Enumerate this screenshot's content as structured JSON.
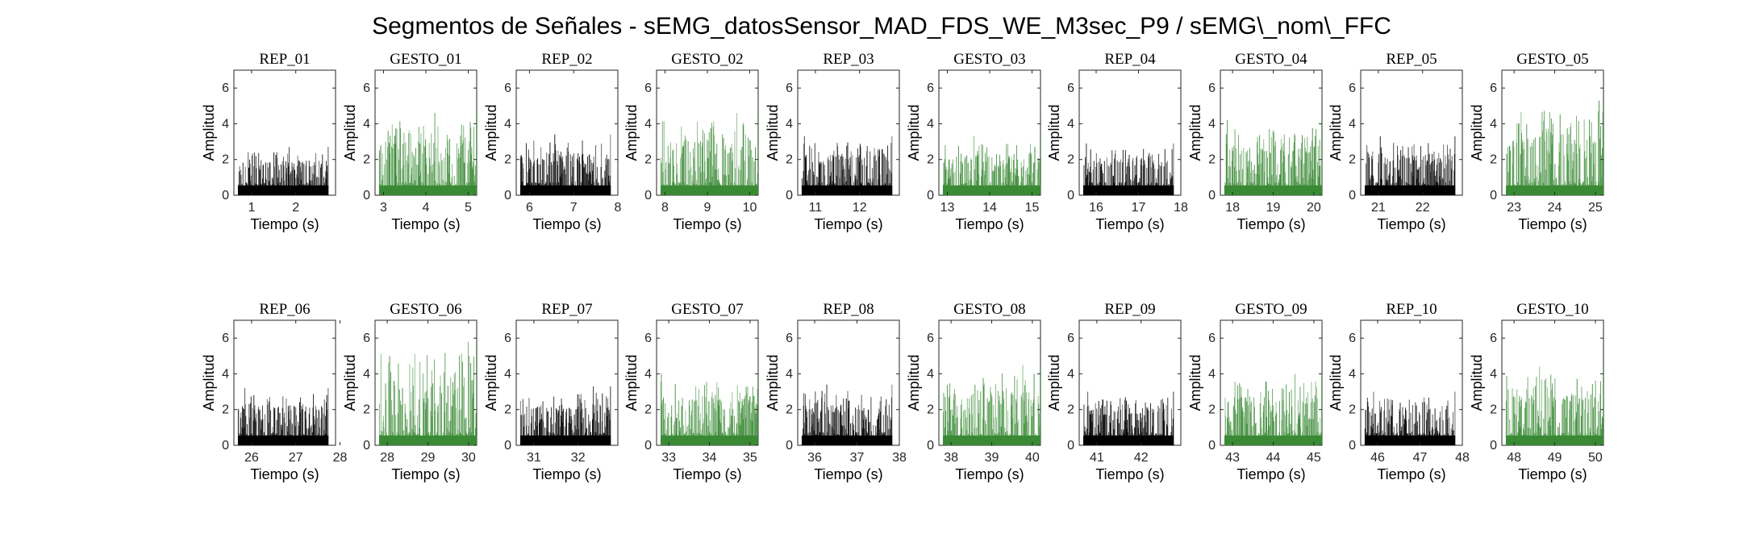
{
  "figure": {
    "title": "Segmentos de Señales - sEMG_datosSensor_MAD_FDS_WE_M3sec_P9 / sEMG\\_nom\\_FFC",
    "colors": {
      "rep": "#000000",
      "gesto": "#3a8a35",
      "axis": "#262626"
    }
  },
  "chart_data": [
    {
      "type": "bar",
      "title": "REP_01",
      "xlabel": "Tiempo (s)",
      "ylabel": "Amplitud",
      "xlim": [
        0.6,
        2.9
      ],
      "xticks": [
        1,
        2
      ],
      "ylim": [
        0,
        7
      ],
      "yticks": [
        0,
        2,
        4,
        6
      ],
      "typical_max": 2.7,
      "series": [
        {
          "name": "REP_01",
          "color": "#000000"
        }
      ]
    },
    {
      "type": "bar",
      "title": "GESTO_01",
      "xlabel": "Tiempo (s)",
      "ylabel": "Amplitud",
      "xlim": [
        2.8,
        5.2
      ],
      "xticks": [
        3,
        4,
        5
      ],
      "ylim": [
        0,
        7
      ],
      "yticks": [
        0,
        2,
        4,
        6
      ],
      "typical_max": 4.6,
      "series": [
        {
          "name": "GESTO_01",
          "color": "#3a8a35"
        }
      ]
    },
    {
      "type": "bar",
      "title": "REP_02",
      "xlabel": "Tiempo (s)",
      "ylabel": "Amplitud",
      "xlim": [
        5.7,
        8.0
      ],
      "xticks": [
        6,
        7,
        8
      ],
      "ylim": [
        0,
        7
      ],
      "yticks": [
        0,
        2,
        4,
        6
      ],
      "typical_max": 3.4,
      "series": [
        {
          "name": "REP_02",
          "color": "#000000"
        }
      ]
    },
    {
      "type": "bar",
      "title": "GESTO_02",
      "xlabel": "Tiempo (s)",
      "ylabel": "Amplitud",
      "xlim": [
        7.8,
        10.2
      ],
      "xticks": [
        8,
        9,
        10
      ],
      "ylim": [
        0,
        7
      ],
      "yticks": [
        0,
        2,
        4,
        6
      ],
      "typical_max": 4.6,
      "series": [
        {
          "name": "GESTO_02",
          "color": "#3a8a35"
        }
      ]
    },
    {
      "type": "bar",
      "title": "REP_03",
      "xlabel": "Tiempo (s)",
      "ylabel": "Amplitud",
      "xlim": [
        10.6,
        12.9
      ],
      "xticks": [
        11,
        12
      ],
      "ylim": [
        0,
        7
      ],
      "yticks": [
        0,
        2,
        4,
        6
      ],
      "typical_max": 3.3,
      "series": [
        {
          "name": "REP_03",
          "color": "#000000"
        }
      ]
    },
    {
      "type": "bar",
      "title": "GESTO_03",
      "xlabel": "Tiempo (s)",
      "ylabel": "Amplitud",
      "xlim": [
        12.8,
        15.2
      ],
      "xticks": [
        13,
        14,
        15
      ],
      "ylim": [
        0,
        7
      ],
      "yticks": [
        0,
        2,
        4,
        6
      ],
      "typical_max": 3.3,
      "series": [
        {
          "name": "GESTO_03",
          "color": "#3a8a35"
        }
      ]
    },
    {
      "type": "bar",
      "title": "REP_04",
      "xlabel": "Tiempo (s)",
      "ylabel": "Amplitud",
      "xlim": [
        15.6,
        18.0
      ],
      "xticks": [
        16,
        17,
        18
      ],
      "ylim": [
        0,
        7
      ],
      "yticks": [
        0,
        2,
        4,
        6
      ],
      "typical_max": 2.9,
      "series": [
        {
          "name": "REP_04",
          "color": "#000000"
        }
      ]
    },
    {
      "type": "bar",
      "title": "GESTO_04",
      "xlabel": "Tiempo (s)",
      "ylabel": "Amplitud",
      "xlim": [
        17.7,
        20.2
      ],
      "xticks": [
        18,
        19,
        20
      ],
      "ylim": [
        0,
        7
      ],
      "yticks": [
        0,
        2,
        4,
        6
      ],
      "typical_max": 4.2,
      "series": [
        {
          "name": "GESTO_04",
          "color": "#3a8a35"
        }
      ]
    },
    {
      "type": "bar",
      "title": "REP_05",
      "xlabel": "Tiempo (s)",
      "ylabel": "Amplitud",
      "xlim": [
        20.6,
        22.9
      ],
      "xticks": [
        21,
        22
      ],
      "ylim": [
        0,
        7
      ],
      "yticks": [
        0,
        2,
        4,
        6
      ],
      "typical_max": 3.3,
      "series": [
        {
          "name": "REP_05",
          "color": "#000000"
        }
      ]
    },
    {
      "type": "bar",
      "title": "GESTO_05",
      "xlabel": "Tiempo (s)",
      "ylabel": "Amplitud",
      "xlim": [
        22.7,
        25.2
      ],
      "xticks": [
        23,
        24,
        25
      ],
      "ylim": [
        0,
        7
      ],
      "yticks": [
        0,
        2,
        4,
        6
      ],
      "typical_max": 5.3,
      "series": [
        {
          "name": "GESTO_05",
          "color": "#3a8a35"
        }
      ]
    },
    {
      "type": "bar",
      "title": "REP_06",
      "xlabel": "Tiempo (s)",
      "ylabel": "Amplitud",
      "xlim": [
        25.6,
        27.9
      ],
      "xticks": [
        26,
        27,
        28
      ],
      "ylim": [
        0,
        7
      ],
      "yticks": [
        0,
        2,
        4,
        6
      ],
      "typical_max": 3.2,
      "series": [
        {
          "name": "REP_06",
          "color": "#000000"
        }
      ]
    },
    {
      "type": "bar",
      "title": "GESTO_06",
      "xlabel": "Tiempo (s)",
      "ylabel": "Amplitud",
      "xlim": [
        27.7,
        30.2
      ],
      "xticks": [
        28,
        29,
        30
      ],
      "ylim": [
        0,
        7
      ],
      "yticks": [
        0,
        2,
        4,
        6
      ],
      "typical_max": 5.8,
      "series": [
        {
          "name": "GESTO_06",
          "color": "#3a8a35"
        }
      ]
    },
    {
      "type": "bar",
      "title": "REP_07",
      "xlabel": "Tiempo (s)",
      "ylabel": "Amplitud",
      "xlim": [
        30.6,
        32.9
      ],
      "xticks": [
        31,
        32
      ],
      "ylim": [
        0,
        7
      ],
      "yticks": [
        0,
        2,
        4,
        6
      ],
      "typical_max": 3.3,
      "series": [
        {
          "name": "REP_07",
          "color": "#000000"
        }
      ]
    },
    {
      "type": "bar",
      "title": "GESTO_07",
      "xlabel": "Tiempo (s)",
      "ylabel": "Amplitud",
      "xlim": [
        32.7,
        35.2
      ],
      "xticks": [
        33,
        34,
        35
      ],
      "ylim": [
        0,
        7
      ],
      "yticks": [
        0,
        2,
        4,
        6
      ],
      "typical_max": 4.0,
      "series": [
        {
          "name": "GESTO_07",
          "color": "#3a8a35"
        }
      ]
    },
    {
      "type": "bar",
      "title": "REP_08",
      "xlabel": "Tiempo (s)",
      "ylabel": "Amplitud",
      "xlim": [
        35.6,
        38.0
      ],
      "xticks": [
        36,
        37,
        38
      ],
      "ylim": [
        0,
        7
      ],
      "yticks": [
        0,
        2,
        4,
        6
      ],
      "typical_max": 3.4,
      "series": [
        {
          "name": "REP_08",
          "color": "#000000"
        }
      ]
    },
    {
      "type": "bar",
      "title": "GESTO_08",
      "xlabel": "Tiempo (s)",
      "ylabel": "Amplitud",
      "xlim": [
        37.7,
        40.2
      ],
      "xticks": [
        38,
        39,
        40
      ],
      "ylim": [
        0,
        7
      ],
      "yticks": [
        0,
        2,
        4,
        6
      ],
      "typical_max": 4.5,
      "series": [
        {
          "name": "GESTO_08",
          "color": "#3a8a35"
        }
      ]
    },
    {
      "type": "bar",
      "title": "REP_09",
      "xlabel": "Tiempo (s)",
      "ylabel": "Amplitud",
      "xlim": [
        40.6,
        42.9
      ],
      "xticks": [
        41,
        42
      ],
      "ylim": [
        0,
        7
      ],
      "yticks": [
        0,
        2,
        4,
        6
      ],
      "typical_max": 3.0,
      "series": [
        {
          "name": "REP_09",
          "color": "#000000"
        }
      ]
    },
    {
      "type": "bar",
      "title": "GESTO_09",
      "xlabel": "Tiempo (s)",
      "ylabel": "Amplitud",
      "xlim": [
        42.7,
        45.2
      ],
      "xticks": [
        43,
        44,
        45
      ],
      "ylim": [
        0,
        7
      ],
      "yticks": [
        0,
        2,
        4,
        6
      ],
      "typical_max": 4.0,
      "series": [
        {
          "name": "GESTO_09",
          "color": "#3a8a35"
        }
      ]
    },
    {
      "type": "bar",
      "title": "REP_10",
      "xlabel": "Tiempo (s)",
      "ylabel": "Amplitud",
      "xlim": [
        45.6,
        48.0
      ],
      "xticks": [
        46,
        47,
        48
      ],
      "ylim": [
        0,
        7
      ],
      "yticks": [
        0,
        2,
        4,
        6
      ],
      "typical_max": 3.0,
      "series": [
        {
          "name": "REP_10",
          "color": "#000000"
        }
      ]
    },
    {
      "type": "bar",
      "title": "GESTO_10",
      "xlabel": "Tiempo (s)",
      "ylabel": "Amplitud",
      "xlim": [
        47.7,
        50.2
      ],
      "xticks": [
        48,
        49,
        50
      ],
      "ylim": [
        0,
        7
      ],
      "yticks": [
        0,
        2,
        4,
        6
      ],
      "typical_max": 4.4,
      "series": [
        {
          "name": "GESTO_10",
          "color": "#3a8a35"
        }
      ]
    }
  ]
}
